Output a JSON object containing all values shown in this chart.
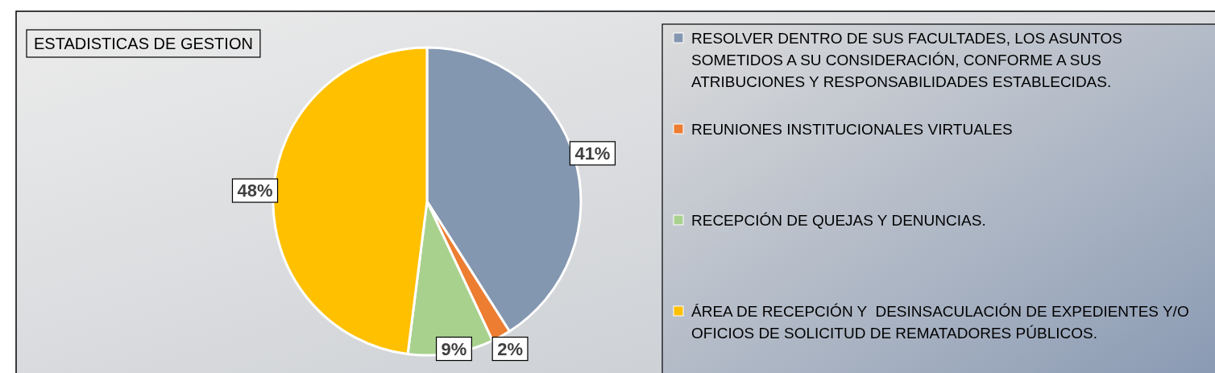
{
  "chart_data": {
    "type": "pie",
    "title": "ESTADISTICAS DE GESTION",
    "categories": [
      "RESOLVER DENTRO DE SUS FACULTADES, LOS ASUNTOS SOMETIDOS A SU CONSIDERACIÓN, CONFORME A SUS ATRIBUCIONES Y RESPONSABILIDADES ESTABLECIDAS.",
      "REUNIONES INSTITUCIONALES VIRTUALES",
      "RECEPCIÓN DE QUEJAS Y DENUNCIAS.",
      "ÁREA DE RECEPCIÓN Y  DESINSACULACIÓN DE EXPEDIENTES Y/O OFICIOS DE SOLICITUD DE REMATADORES PÚBLICOS."
    ],
    "values": [
      41,
      2,
      9,
      48
    ],
    "colors": [
      "#8497b0",
      "#ed7d31",
      "#a9d18e",
      "#ffc000"
    ],
    "value_labels": [
      "41%",
      "2%",
      "9%",
      "48%"
    ],
    "legend": "right"
  }
}
